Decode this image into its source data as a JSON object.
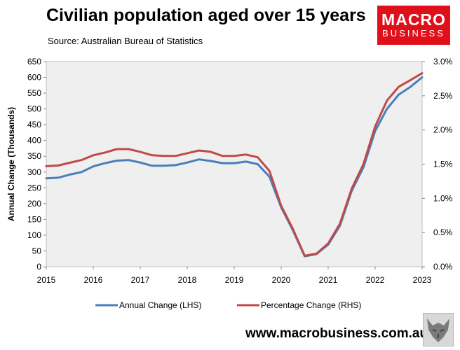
{
  "header": {
    "title": "Civilian population aged over 15 years",
    "subtitle": "Source: Australian Bureau of Statistics"
  },
  "brand": {
    "line1": "MACRO",
    "line2": "BUSINESS",
    "color": "#e0101b"
  },
  "footer": {
    "website": "www.macrobusiness.com.au"
  },
  "chart_data": {
    "type": "line",
    "title": "Civilian population aged over 15 years",
    "ylabel": "Annual Change (Thousands)",
    "xlabel": "",
    "x_ticks": [
      "2015",
      "2016",
      "2017",
      "2018",
      "2019",
      "2020",
      "2021",
      "2022",
      "2023"
    ],
    "y_ticks": [
      "0",
      "50",
      "100",
      "150",
      "200",
      "250",
      "300",
      "350",
      "400",
      "450",
      "500",
      "550",
      "600",
      "650"
    ],
    "y2_ticks": [
      "0.0%",
      "0.5%",
      "1.0%",
      "1.5%",
      "2.0%",
      "2.5%",
      "3.0%"
    ],
    "ylim": [
      0,
      650
    ],
    "y2lim": [
      0,
      3.0
    ],
    "xlim": [
      2015.0,
      2023.0
    ],
    "grid": false,
    "legend": "bottom",
    "series": [
      {
        "name": "Annual Change (LHS)",
        "axis": "left",
        "color": "#4a7ebb",
        "x": [
          2015.0,
          2015.25,
          2015.5,
          2015.75,
          2016.0,
          2016.25,
          2016.5,
          2016.75,
          2017.0,
          2017.25,
          2017.5,
          2017.75,
          2018.0,
          2018.25,
          2018.5,
          2018.75,
          2019.0,
          2019.25,
          2019.5,
          2019.75,
          2020.0,
          2020.25,
          2020.5,
          2020.75,
          2021.0,
          2021.25,
          2021.5,
          2021.75,
          2022.0,
          2022.25,
          2022.5,
          2022.75,
          2023.0
        ],
        "values": [
          280,
          282,
          292,
          300,
          318,
          328,
          336,
          338,
          330,
          320,
          320,
          322,
          330,
          340,
          335,
          328,
          328,
          333,
          325,
          285,
          188,
          115,
          33,
          40,
          70,
          130,
          240,
          315,
          430,
          500,
          545,
          570,
          600
        ]
      },
      {
        "name": "Percentage Change (RHS)",
        "axis": "right",
        "color": "#be4b48",
        "x": [
          2015.0,
          2015.25,
          2015.5,
          2015.75,
          2016.0,
          2016.25,
          2016.5,
          2016.75,
          2017.0,
          2017.25,
          2017.5,
          2017.75,
          2018.0,
          2018.25,
          2018.5,
          2018.75,
          2019.0,
          2019.25,
          2019.5,
          2019.75,
          2020.0,
          2020.25,
          2020.5,
          2020.75,
          2021.0,
          2021.25,
          2021.5,
          2021.75,
          2022.0,
          2022.25,
          2022.5,
          2022.75,
          2023.0
        ],
        "values": [
          1.47,
          1.48,
          1.52,
          1.56,
          1.63,
          1.67,
          1.72,
          1.72,
          1.68,
          1.63,
          1.62,
          1.62,
          1.66,
          1.7,
          1.68,
          1.62,
          1.62,
          1.64,
          1.6,
          1.4,
          0.89,
          0.55,
          0.16,
          0.19,
          0.34,
          0.63,
          1.14,
          1.5,
          2.05,
          2.43,
          2.63,
          2.73,
          2.83
        ]
      }
    ]
  }
}
